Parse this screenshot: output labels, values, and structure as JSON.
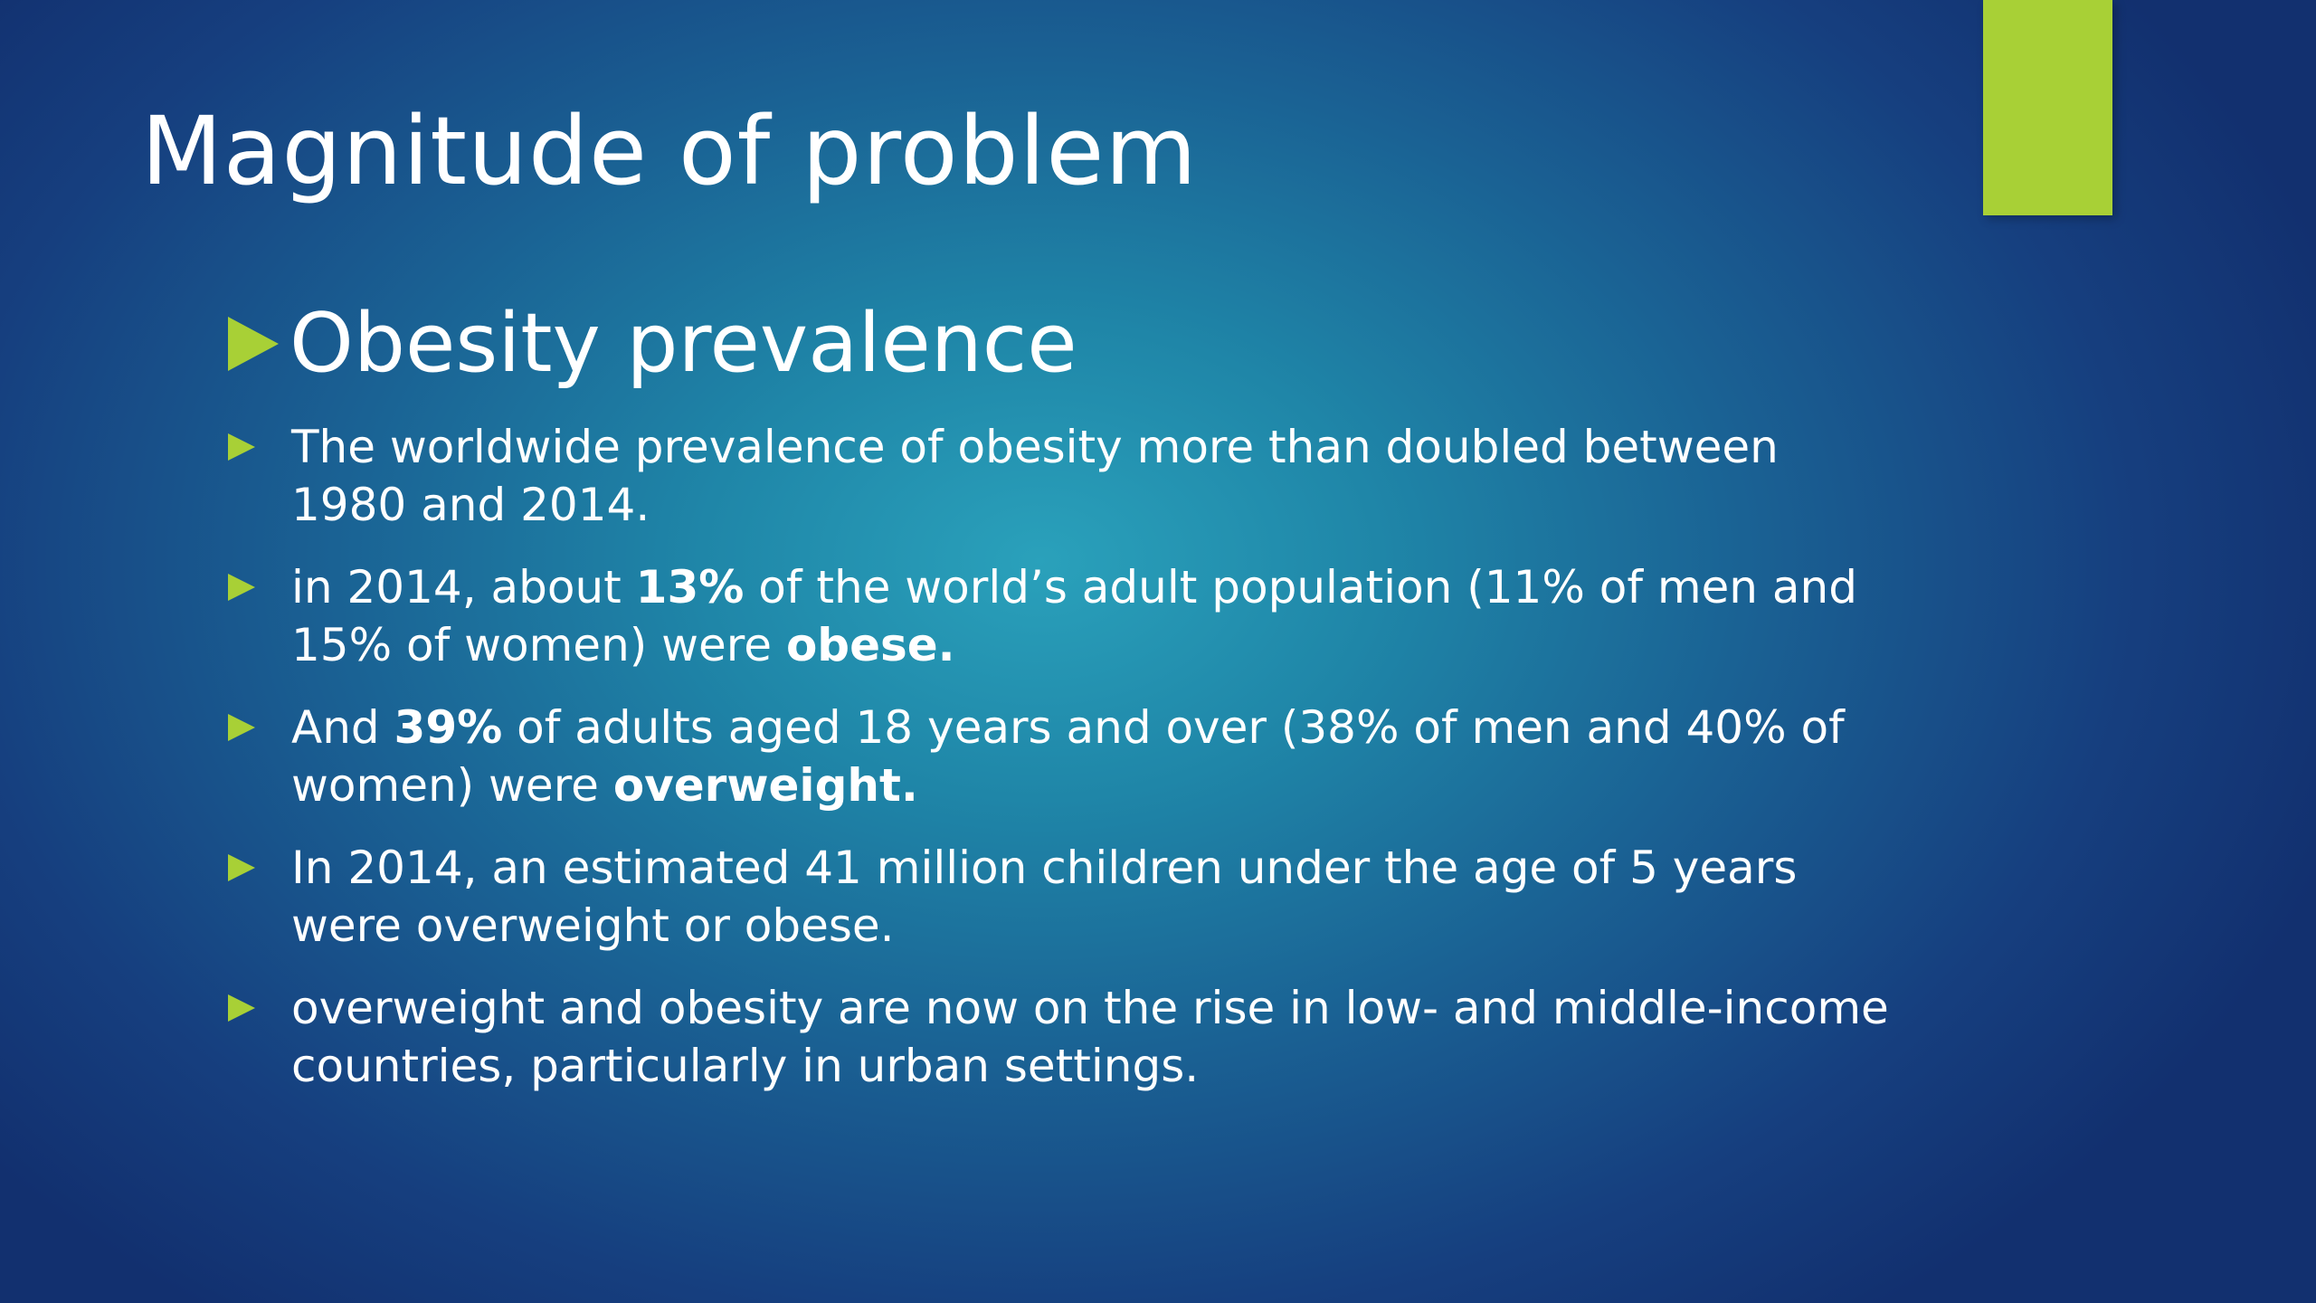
{
  "slide": {
    "title": "Magnitude of problem",
    "subheading": "Obesity prevalence",
    "accent_color": "#a8d036",
    "bullets": [
      {
        "text": "The worldwide prevalence of obesity more than doubled between 1980 and 2014."
      },
      {
        "t1": "in 2014, about ",
        "b1": "13%",
        "t2": " of the world’s adult population (11% of men and 15% of women) were ",
        "b2": "obese."
      },
      {
        "t1": "And ",
        "b1": "39%",
        "t2": " of adults aged 18 years and over (38% of men and 40% of women) were ",
        "b2": "overweight."
      },
      {
        "text": "In 2014, an estimated 41 million children under the age of 5 years were overweight or obese."
      },
      {
        "text": "overweight and obesity are now on the rise in low- and middle-income countries, particularly in urban settings."
      }
    ]
  }
}
